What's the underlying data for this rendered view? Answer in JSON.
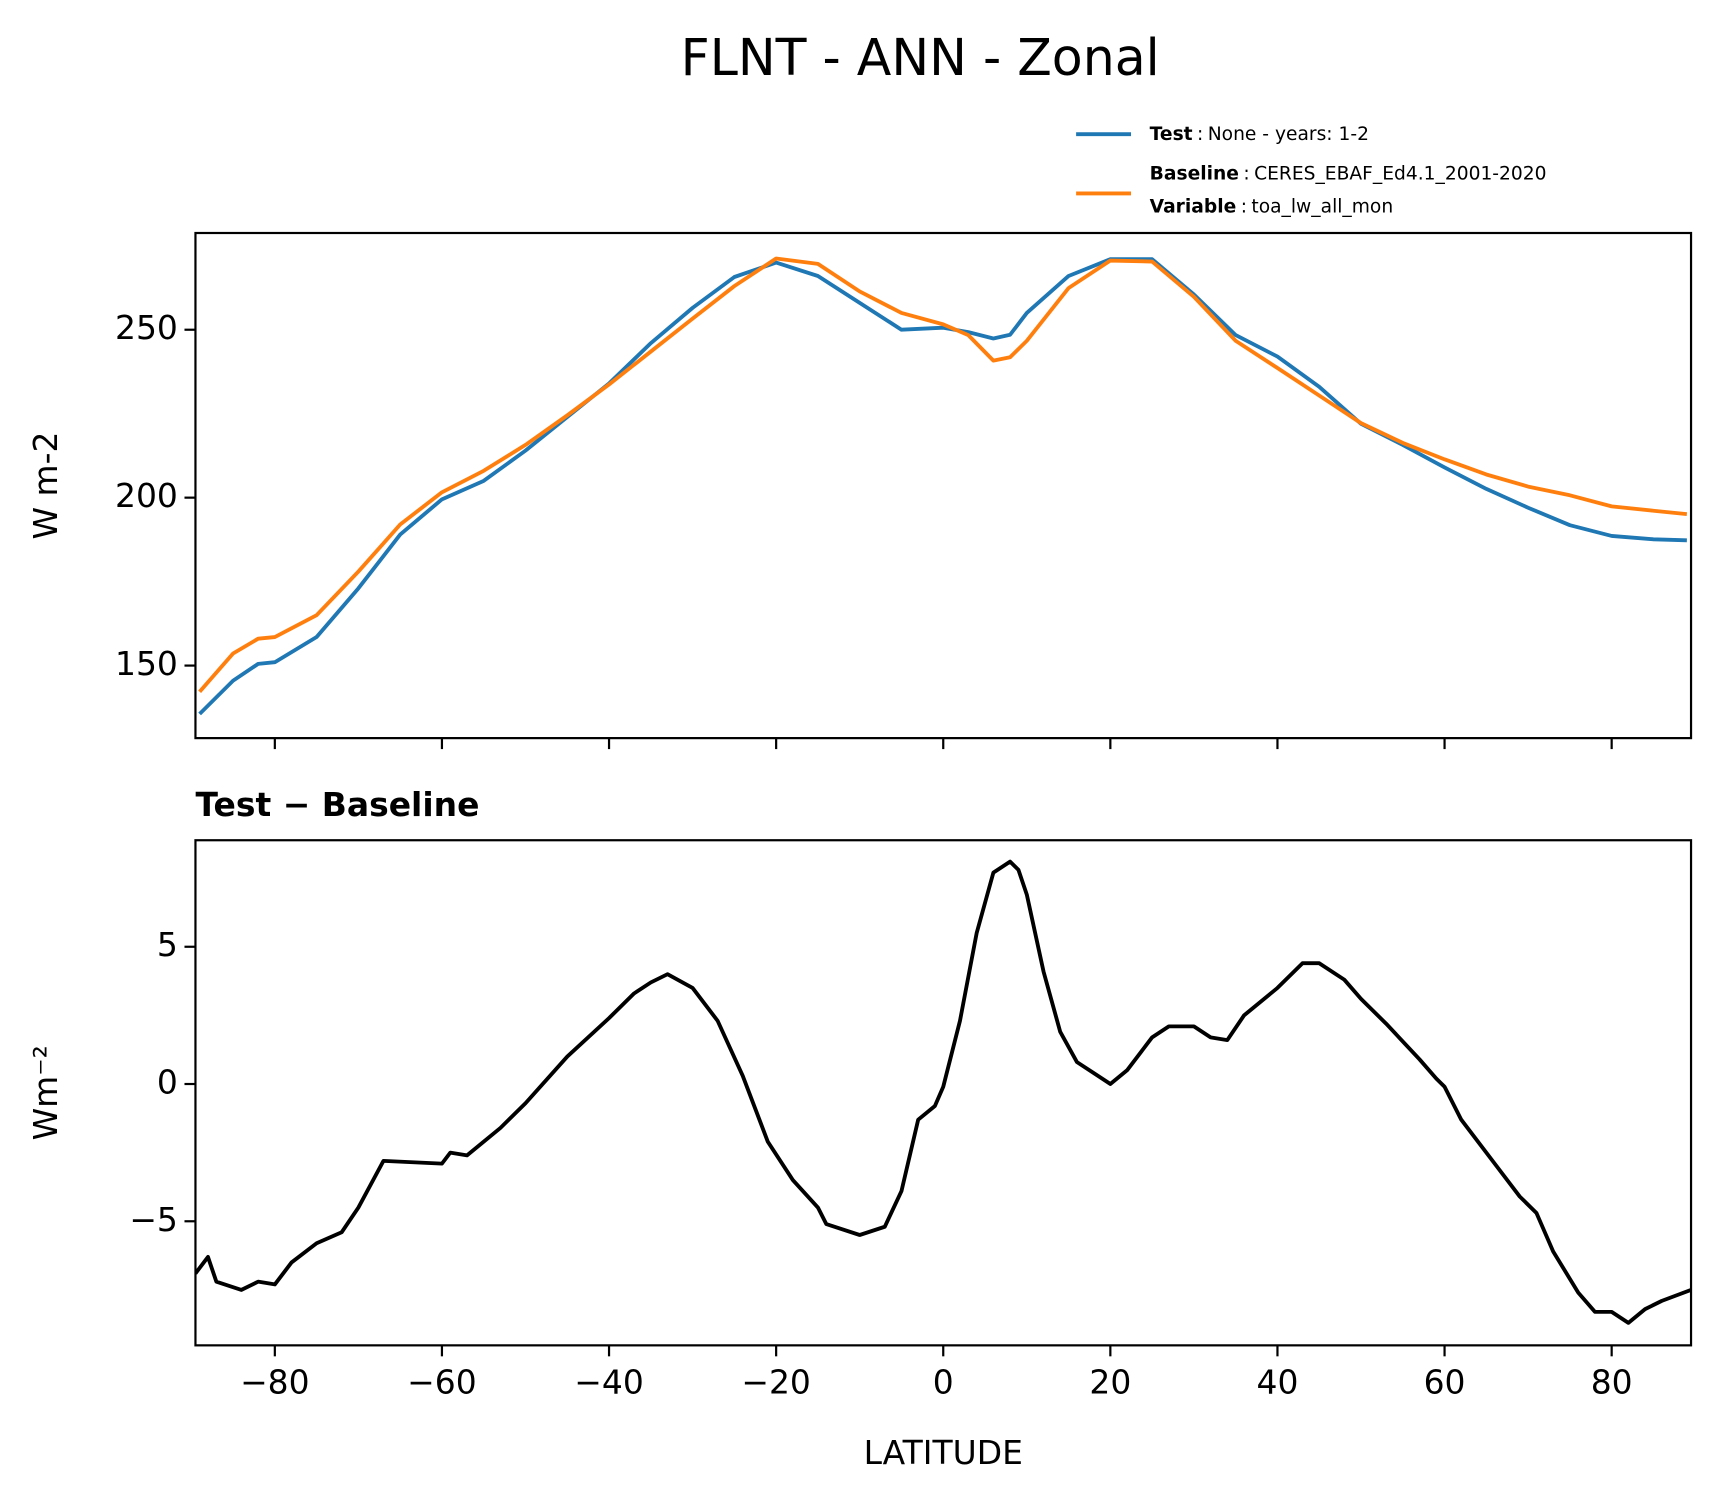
{
  "title": "FLNT - ANN - Zonal",
  "legend_separator": ":",
  "chart_data": [
    {
      "type": "line",
      "ylabel": "W m-2",
      "x": [
        -89,
        -85,
        -82,
        -80,
        -75,
        -70,
        -65,
        -60,
        -55,
        -50,
        -45,
        -40,
        -35,
        -30,
        -25,
        -20,
        -15,
        -10,
        -5,
        0,
        3,
        6,
        8,
        10,
        15,
        20,
        25,
        30,
        35,
        40,
        45,
        50,
        55,
        60,
        65,
        70,
        75,
        80,
        85,
        89
      ],
      "series": [
        {
          "name": "Test",
          "description": "None - years: 1-2",
          "color": "#1f77b4",
          "values": [
            135.6,
            145.5,
            150.5,
            151,
            158.5,
            173,
            189,
            199.5,
            205,
            214,
            224,
            234,
            246,
            256.5,
            265.7,
            270,
            266,
            258,
            250,
            250.6,
            249.3,
            247.4,
            248.5,
            255,
            266,
            271,
            271,
            260.5,
            248.4,
            242,
            233,
            222,
            215.7,
            209,
            202.6,
            197,
            191.8,
            188.6,
            187.6,
            187.3
          ]
        },
        {
          "name": "Baseline",
          "description": "CERES_EBAF_Ed4.1_2001-2020",
          "color": "#ff7f0e",
          "extra": {
            "label": "Variable",
            "description": "toa_lw_all_mon"
          },
          "values": [
            142.2,
            153.6,
            158,
            158.5,
            165,
            178,
            192,
            201.6,
            208,
            215.7,
            224.5,
            233.7,
            243.5,
            253.3,
            263,
            271.2,
            269.6,
            261.4,
            255,
            251.6,
            248.4,
            240.8,
            241.8,
            246.7,
            262.4,
            270.6,
            270.3,
            259.8,
            246.7,
            238.6,
            230.4,
            222.2,
            216.3,
            211.4,
            206.9,
            203.3,
            200.7,
            197.4,
            196.1,
            195.1
          ]
        }
      ],
      "xlim": [
        -89.5,
        89.5
      ],
      "ylim": [
        128.4,
        278.8
      ],
      "xticks": [
        -80,
        -60,
        -40,
        -20,
        0,
        20,
        40,
        60,
        80
      ],
      "xticklabels": false,
      "yticks": [
        150,
        200,
        250
      ]
    },
    {
      "type": "line",
      "title": "Test − Baseline",
      "ylabel": "Wm⁻²",
      "xlabel": "LATITUDE",
      "color": "#000000",
      "x": [
        -89.5,
        -88,
        -87,
        -84,
        -82,
        -80,
        -78,
        -75,
        -72,
        -70,
        -67,
        -60,
        -59,
        -57,
        -53,
        -50,
        -45,
        -40,
        -37,
        -35,
        -33,
        -30,
        -27,
        -24,
        -21,
        -18,
        -15,
        -14,
        -10,
        -7,
        -5,
        -3,
        -1,
        0,
        2,
        4,
        6,
        8,
        9,
        10,
        12,
        14,
        16,
        18,
        20,
        22,
        25,
        27,
        30,
        32,
        34,
        36,
        40,
        43,
        45,
        48,
        50,
        53,
        57,
        59,
        60,
        62,
        66,
        69,
        71,
        73,
        76,
        78,
        80,
        82,
        84,
        86,
        89.5
      ],
      "values": [
        -6.9,
        -6.3,
        -7.2,
        -7.5,
        -7.2,
        -7.3,
        -6.5,
        -5.8,
        -5.4,
        -4.5,
        -2.8,
        -2.9,
        -2.5,
        -2.6,
        -1.6,
        -0.7,
        1.0,
        2.4,
        3.3,
        3.7,
        4.0,
        3.5,
        2.3,
        0.3,
        -2.1,
        -3.5,
        -4.5,
        -5.1,
        -5.5,
        -5.2,
        -3.9,
        -1.3,
        -0.8,
        -0.1,
        2.3,
        5.5,
        7.7,
        8.1,
        7.8,
        6.9,
        4.1,
        1.9,
        0.8,
        0.4,
        0,
        0.5,
        1.7,
        2.1,
        2.1,
        1.7,
        1.6,
        2.5,
        3.5,
        4.4,
        4.4,
        3.8,
        3.1,
        2.2,
        0.9,
        0.2,
        -0.1,
        -1.3,
        -2.9,
        -4.1,
        -4.7,
        -6.1,
        -7.6,
        -8.3,
        -8.3,
        -8.7,
        -8.2,
        -7.9,
        -7.5
      ],
      "xlim": [
        -89.5,
        89.5
      ],
      "ylim": [
        -9.52,
        8.88
      ],
      "xticks": [
        {
          "value": -80,
          "label": "−80"
        },
        {
          "value": -60,
          "label": "−60"
        },
        {
          "value": -40,
          "label": "−40"
        },
        {
          "value": -20,
          "label": "−20"
        },
        0,
        20,
        40,
        60,
        80
      ],
      "xticklabels": true,
      "yticks": [
        {
          "value": -5,
          "label": "−5"
        },
        0,
        5
      ]
    }
  ]
}
